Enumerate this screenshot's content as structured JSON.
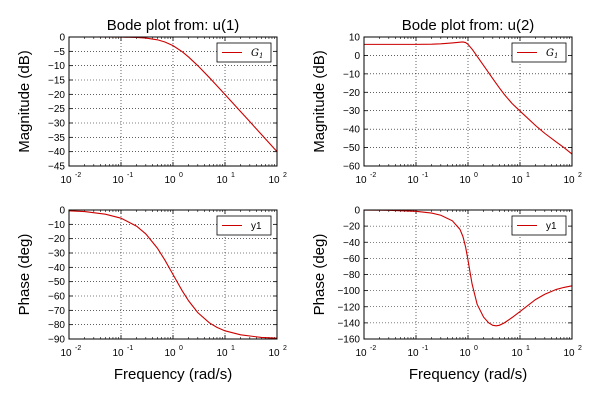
{
  "chart_data": [
    {
      "type": "line",
      "title": "Bode plot from: u(1)",
      "xlabel": "",
      "ylabel": "Magnitude (dB)",
      "xscale": "log",
      "xlim": [
        0.01,
        100
      ],
      "ylim": [
        -45,
        0
      ],
      "yticks": [
        0,
        -5,
        -10,
        -15,
        -20,
        -25,
        -30,
        -35,
        -40,
        -45
      ],
      "xtick_labels": [
        [
          "10",
          "-2"
        ],
        [
          "10",
          "-1"
        ],
        [
          "10",
          "0"
        ],
        [
          "10",
          "1"
        ],
        [
          "10",
          "2"
        ]
      ],
      "grid": true,
      "legend_position": "top-right",
      "series": [
        {
          "name": "G1",
          "name_base": "G",
          "name_sub": "1",
          "color": "#cc0000",
          "x": [
            0.01,
            0.03,
            0.1,
            0.2,
            0.3,
            0.5,
            0.7,
            1.0,
            1.5,
            2,
            3,
            5,
            7,
            10,
            20,
            30,
            50,
            70,
            100
          ],
          "y": [
            0.0,
            0.0,
            -0.04,
            -0.17,
            -0.37,
            -0.97,
            -1.74,
            -3.01,
            -5.12,
            -6.99,
            -10.0,
            -14.15,
            -17.0,
            -20.04,
            -26.02,
            -29.54,
            -33.98,
            -36.9,
            -40.0
          ]
        }
      ]
    },
    {
      "type": "line",
      "title": "Bode plot from: u(2)",
      "xlabel": "",
      "ylabel": "Magnitude (dB)",
      "xscale": "log",
      "xlim": [
        0.01,
        100
      ],
      "ylim": [
        -60,
        10
      ],
      "yticks": [
        10,
        0,
        -10,
        -20,
        -30,
        -40,
        -50,
        -60
      ],
      "xtick_labels": [
        [
          "10",
          "-2"
        ],
        [
          "10",
          "-1"
        ],
        [
          "10",
          "0"
        ],
        [
          "10",
          "1"
        ],
        [
          "10",
          "2"
        ]
      ],
      "grid": true,
      "legend_position": "top-right",
      "series": [
        {
          "name": "G1",
          "name_base": "G",
          "name_sub": "1",
          "color": "#cc0000",
          "x": [
            0.01,
            0.03,
            0.1,
            0.2,
            0.3,
            0.5,
            0.7,
            0.8,
            0.9,
            1.0,
            1.2,
            1.5,
            2,
            3,
            4,
            5,
            7,
            10,
            20,
            30,
            50,
            70,
            100
          ],
          "y": [
            6.0,
            6.0,
            6.0,
            6.1,
            6.3,
            6.8,
            7.2,
            7.3,
            7.0,
            6.0,
            3.4,
            -0.5,
            -5.5,
            -12.6,
            -17.6,
            -21.2,
            -26.0,
            -30.2,
            -38.1,
            -42.3,
            -47.0,
            -50.0,
            -53.5
          ]
        }
      ]
    },
    {
      "type": "line",
      "title": "",
      "xlabel": "Frequency (rad/s)",
      "ylabel": "Phase (deg)",
      "xscale": "log",
      "xlim": [
        0.01,
        100
      ],
      "ylim": [
        -90,
        0
      ],
      "yticks": [
        0,
        -10,
        -20,
        -30,
        -40,
        -50,
        -60,
        -70,
        -80,
        -90
      ],
      "xtick_labels": [
        [
          "10",
          "-2"
        ],
        [
          "10",
          "-1"
        ],
        [
          "10",
          "0"
        ],
        [
          "10",
          "1"
        ],
        [
          "10",
          "2"
        ]
      ],
      "grid": true,
      "legend_position": "top-right",
      "series": [
        {
          "name": "y1",
          "color": "#cc0000",
          "x": [
            0.01,
            0.02,
            0.05,
            0.1,
            0.2,
            0.3,
            0.5,
            0.7,
            1.0,
            1.5,
            2,
            3,
            5,
            7,
            10,
            20,
            50,
            100
          ],
          "y": [
            -0.6,
            -1.1,
            -2.9,
            -5.7,
            -11.3,
            -16.7,
            -26.6,
            -35.0,
            -45.0,
            -56.3,
            -63.4,
            -71.6,
            -78.7,
            -81.9,
            -84.3,
            -87.1,
            -88.9,
            -89.4
          ]
        }
      ]
    },
    {
      "type": "line",
      "title": "",
      "xlabel": "Frequency (rad/s)",
      "ylabel": "Phase (deg)",
      "xscale": "log",
      "xlim": [
        0.01,
        100
      ],
      "ylim": [
        -160,
        0
      ],
      "yticks": [
        0,
        -20,
        -40,
        -60,
        -80,
        -100,
        -120,
        -140,
        -160
      ],
      "xtick_labels": [
        [
          "10",
          "-2"
        ],
        [
          "10",
          "-1"
        ],
        [
          "10",
          "0"
        ],
        [
          "10",
          "1"
        ],
        [
          "10",
          "2"
        ]
      ],
      "grid": true,
      "legend_position": "top-right",
      "series": [
        {
          "name": "y1",
          "color": "#cc0000",
          "x": [
            0.01,
            0.03,
            0.1,
            0.2,
            0.3,
            0.5,
            0.7,
            0.8,
            0.9,
            1.0,
            1.1,
            1.2,
            1.5,
            2,
            2.5,
            3,
            3.5,
            4,
            5,
            7,
            10,
            20,
            30,
            50,
            70,
            100
          ],
          "y": [
            -0.1,
            -0.4,
            -1.6,
            -3.8,
            -6.5,
            -13.4,
            -24.0,
            -33.0,
            -46.0,
            -62.0,
            -78.0,
            -92.0,
            -117.0,
            -133.0,
            -140.0,
            -143.0,
            -143.6,
            -143.0,
            -140.0,
            -133.5,
            -126.0,
            -111.0,
            -104.5,
            -98.5,
            -96.0,
            -94.0
          ]
        }
      ]
    }
  ]
}
